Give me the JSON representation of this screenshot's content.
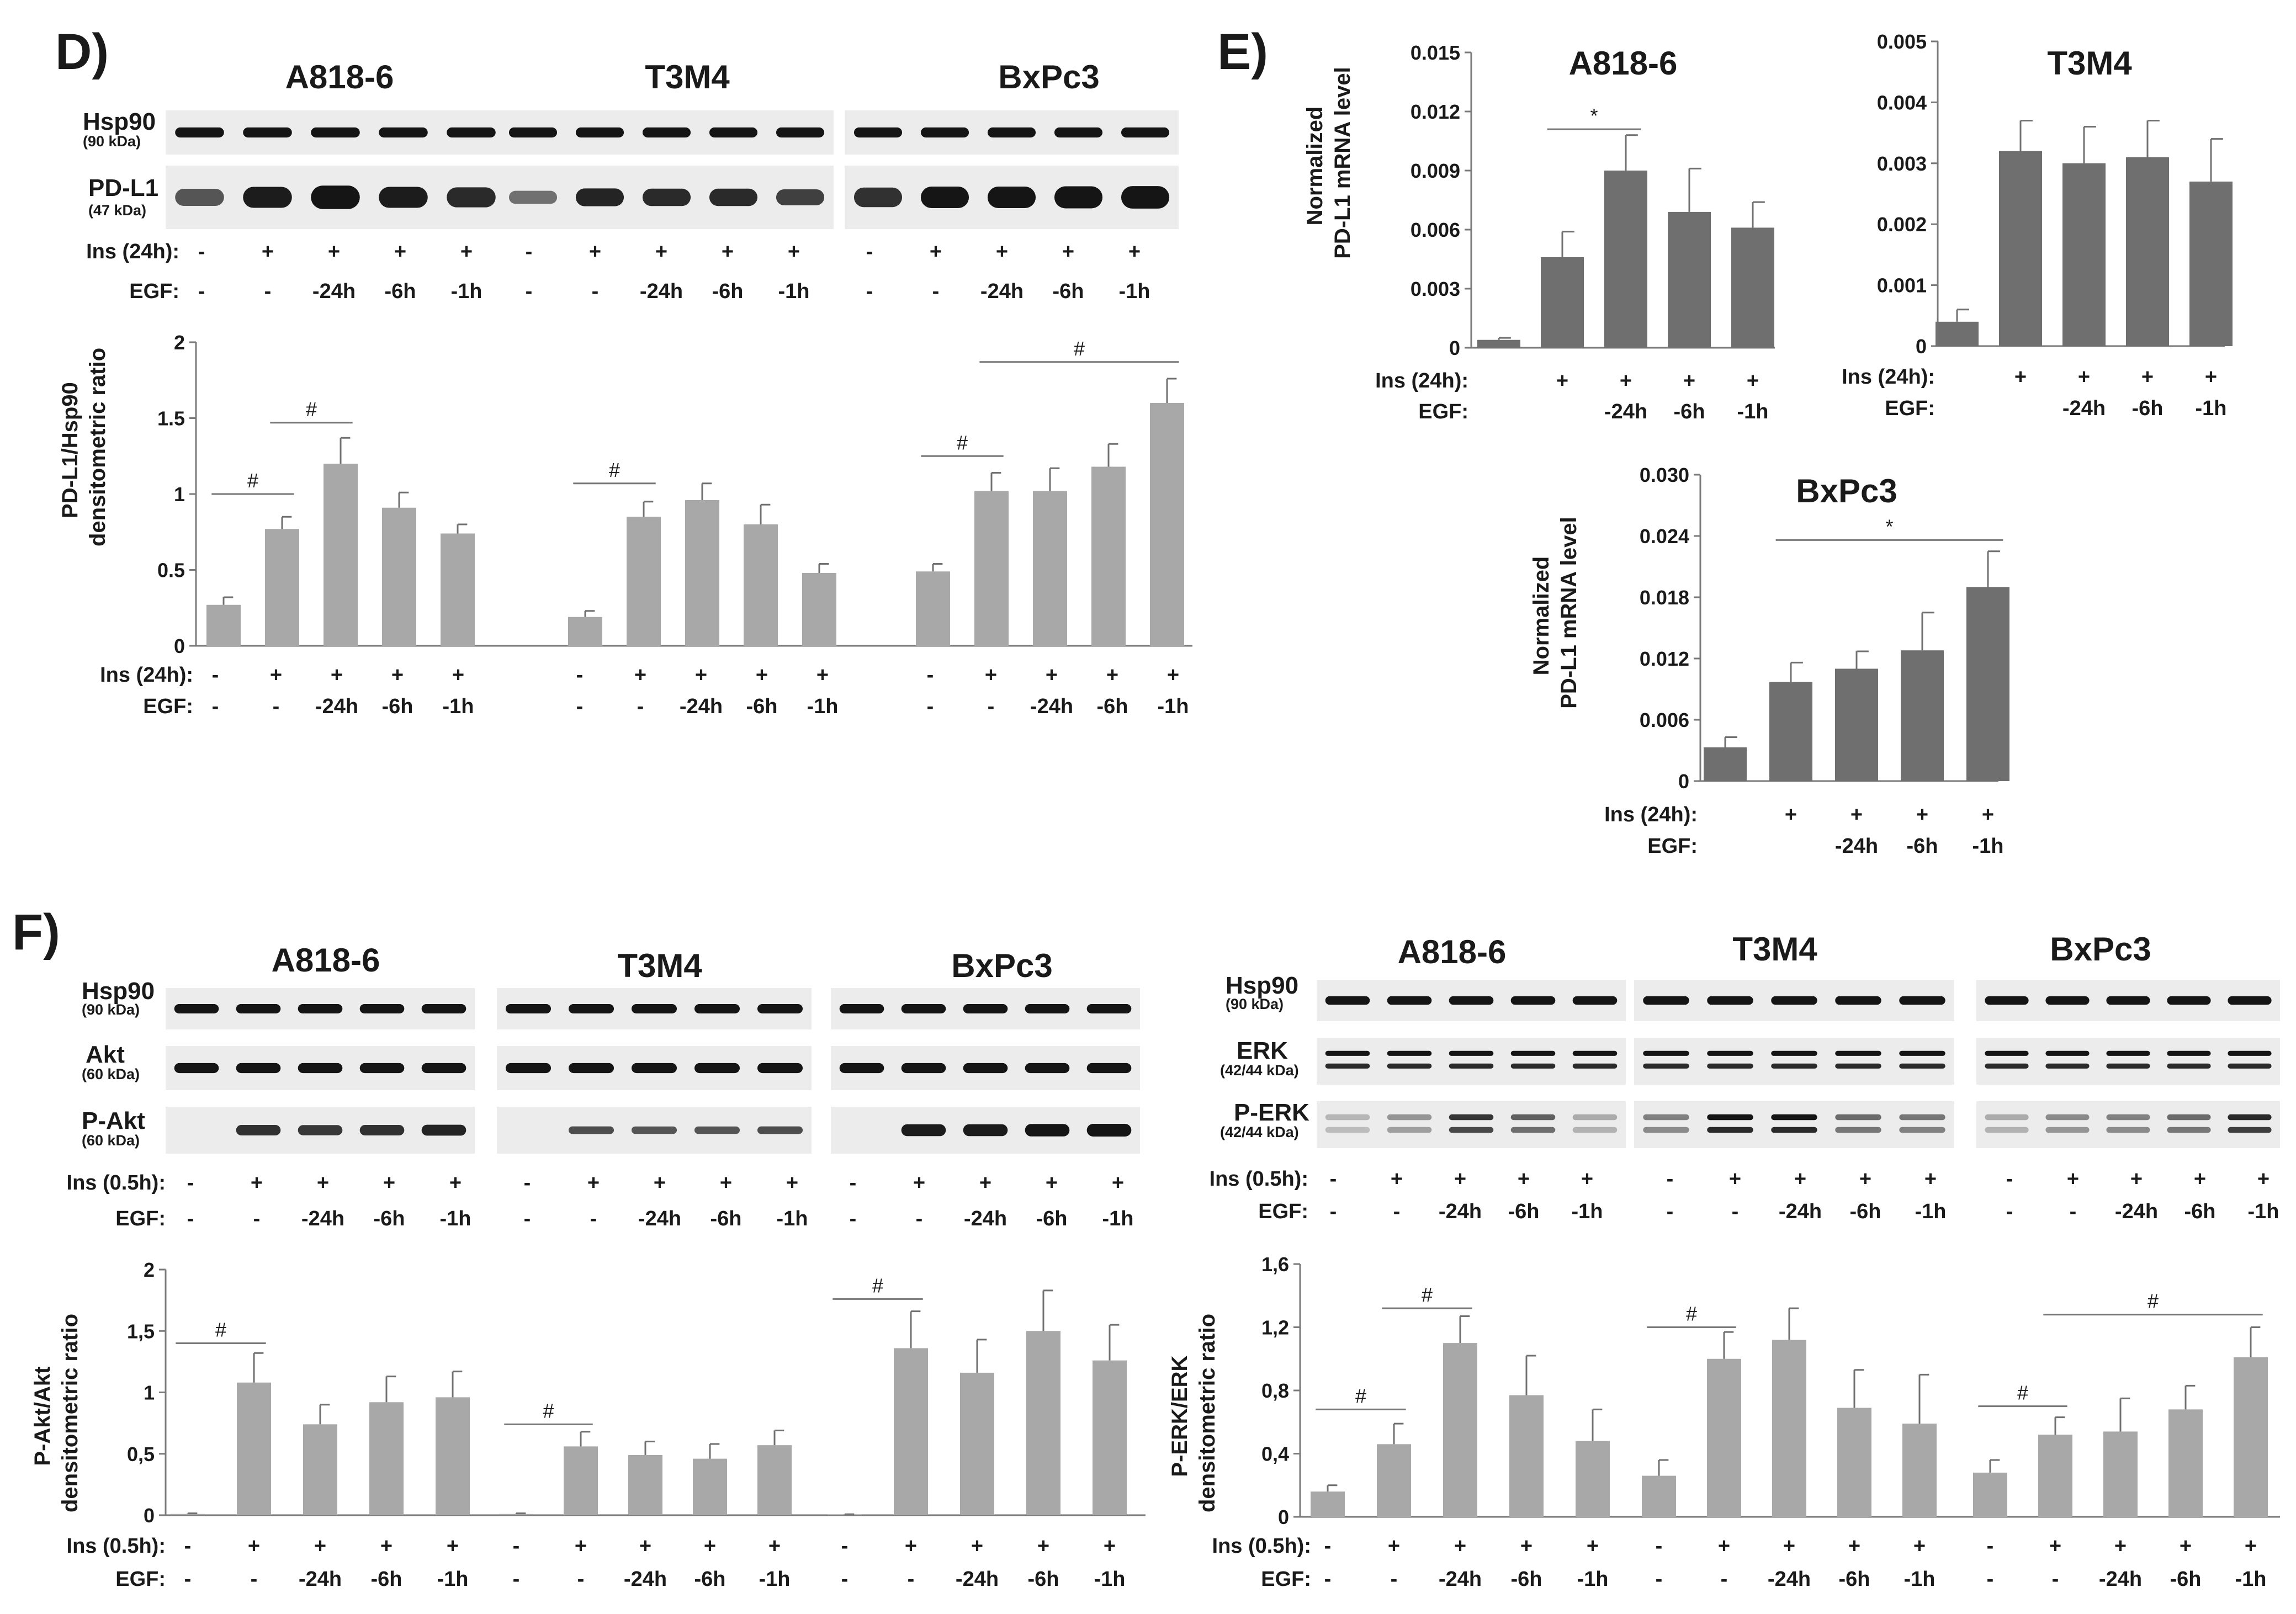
{
  "figure": {
    "panels": [
      "D)",
      "E)",
      "F)"
    ],
    "cell_lines": [
      "A818-6",
      "T3M4",
      "BxPc3"
    ]
  },
  "colors": {
    "bar_light": "#a9a8a8",
    "bar_dark": "#6f6f6f",
    "error": "#707070",
    "axis": "#7a7a7a",
    "sig_line": "#777777",
    "blot_bg": "#ececec",
    "band": "#151515"
  },
  "blot_labels": {
    "hsp90": {
      "name": "Hsp90",
      "kda": "(90 kDa)"
    },
    "pdl1": {
      "name": "PD-L1",
      "kda": "(47 kDa)"
    },
    "akt": {
      "name": "Akt",
      "kda": "(60 kDa)"
    },
    "pakt": {
      "name": "P-Akt",
      "kda": "(60 kDa)"
    },
    "erk": {
      "name": "ERK",
      "kda": "(42/44 kDa)"
    },
    "perk": {
      "name": "P-ERK",
      "kda": "(42/44 kDa)"
    }
  },
  "conditions": {
    "ins24": "Ins (24h):",
    "ins05": "Ins (0.5h):",
    "egf": "EGF:",
    "ins_marks": [
      "-",
      "+",
      "+",
      "+",
      "+"
    ],
    "egf_marks": [
      "-",
      "-",
      "-24h",
      "-6h",
      "-1h"
    ],
    "mrna_ins_marks": [
      "",
      "+",
      "+",
      "+",
      "+"
    ],
    "mrna_egf_marks": [
      "",
      "",
      "-24h",
      "-6h",
      "-1h"
    ]
  },
  "chart_data": [
    {
      "id": "D",
      "type": "bar",
      "ylabel": [
        "PD-L1/Hsp90",
        "densitometric ratio"
      ],
      "ylim": [
        0,
        2
      ],
      "ticks": [
        "0",
        "0.5",
        "1",
        "1.5",
        "2"
      ],
      "groups": [
        "A818-6",
        "T3M4",
        "BxPc3"
      ],
      "series": [
        {
          "name": "A818-6",
          "values": [
            0.27,
            0.77,
            1.2,
            0.91,
            0.74
          ],
          "errors": [
            0.05,
            0.08,
            0.17,
            0.1,
            0.06
          ]
        },
        {
          "name": "T3M4",
          "values": [
            0.19,
            0.85,
            0.96,
            0.8,
            0.48
          ],
          "errors": [
            0.04,
            0.1,
            0.11,
            0.13,
            0.06
          ]
        },
        {
          "name": "BxPc3",
          "values": [
            0.49,
            1.02,
            1.02,
            1.18,
            1.6
          ],
          "errors": [
            0.05,
            0.12,
            0.15,
            0.15,
            0.16
          ]
        }
      ],
      "significance": [
        {
          "group": 0,
          "from": 0,
          "to": 1,
          "y": 1.0,
          "label": "#"
        },
        {
          "group": 0,
          "from": 1,
          "to": 2,
          "y": 1.47,
          "label": "#"
        },
        {
          "group": 1,
          "from": 0,
          "to": 1,
          "y": 1.07,
          "label": "#"
        },
        {
          "group": 2,
          "from": 0,
          "to": 1,
          "y": 1.25,
          "label": "#"
        },
        {
          "group": 2,
          "from": 1,
          "to": 4,
          "y": 1.87,
          "label": "#"
        }
      ]
    },
    {
      "id": "E-A818-6",
      "type": "bar",
      "title": "A818-6",
      "ylabel": [
        "Normalized",
        "PD-L1 mRNA level"
      ],
      "ylim": [
        0,
        0.015
      ],
      "ticks": [
        "0",
        "0.003",
        "0.006",
        "0.009",
        "0.012",
        "0.015"
      ],
      "values": [
        0.0004,
        0.0046,
        0.009,
        0.0069,
        0.0061
      ],
      "errors": [
        0.0001,
        0.0013,
        0.0018,
        0.0022,
        0.0013
      ],
      "significance": [
        {
          "from": 1,
          "to": 2,
          "y": 0.0111,
          "label": "*"
        }
      ]
    },
    {
      "id": "E-T3M4",
      "type": "bar",
      "title": "T3M4",
      "ylim": [
        0,
        0.005
      ],
      "ticks": [
        "0",
        "0.001",
        "0.002",
        "0.003",
        "0.004",
        "0.005"
      ],
      "values": [
        0.0004,
        0.0032,
        0.003,
        0.0031,
        0.0027
      ],
      "errors": [
        0.0002,
        0.0005,
        0.0006,
        0.0006,
        0.0007
      ],
      "significance": []
    },
    {
      "id": "E-BxPc3",
      "type": "bar",
      "title": "BxPc3",
      "ylabel": [
        "Normalized",
        "PD-L1 mRNA level"
      ],
      "ylim": [
        0,
        0.03
      ],
      "ticks": [
        "0",
        "0.006",
        "0.012",
        "0.018",
        "0.024",
        "0.030"
      ],
      "values": [
        0.0033,
        0.0097,
        0.011,
        0.0128,
        0.019
      ],
      "errors": [
        0.001,
        0.0019,
        0.0017,
        0.0037,
        0.0035
      ],
      "significance": [
        {
          "from": 1,
          "to": 4,
          "y": 0.0236,
          "label": "*"
        }
      ]
    },
    {
      "id": "F-Akt",
      "type": "bar",
      "ylabel": [
        "P-Akt/Akt",
        "densitometric ratio"
      ],
      "ylim": [
        0,
        2
      ],
      "ticks": [
        "0",
        "0,5",
        "1",
        "1,5",
        "2"
      ],
      "groups": [
        "A818-6",
        "T3M4",
        "BxPc3"
      ],
      "series": [
        {
          "name": "A818-6",
          "values": [
            0.01,
            1.08,
            0.74,
            0.92,
            0.96
          ],
          "errors": [
            0.005,
            0.24,
            0.16,
            0.21,
            0.21
          ]
        },
        {
          "name": "T3M4",
          "values": [
            0.01,
            0.56,
            0.49,
            0.46,
            0.57
          ],
          "errors": [
            0.005,
            0.12,
            0.11,
            0.12,
            0.12
          ]
        },
        {
          "name": "BxPc3",
          "values": [
            0.005,
            1.36,
            1.16,
            1.5,
            1.26
          ],
          "errors": [
            0.003,
            0.3,
            0.27,
            0.33,
            0.29
          ]
        }
      ],
      "significance": [
        {
          "group": 0,
          "from": 0,
          "to": 1,
          "y": 1.4,
          "label": "#"
        },
        {
          "group": 1,
          "from": 0,
          "to": 1,
          "y": 0.74,
          "label": "#"
        },
        {
          "group": 2,
          "from": 0,
          "to": 1,
          "y": 1.76,
          "label": "#"
        }
      ]
    },
    {
      "id": "F-ERK",
      "type": "bar",
      "ylabel": [
        "P-ERK/ERK",
        "densitometric ratio"
      ],
      "ylim": [
        0,
        1.6
      ],
      "ticks": [
        "0",
        "0,4",
        "0,8",
        "1,2",
        "1,6"
      ],
      "groups": [
        "A818-6",
        "T3M4",
        "BxPc3"
      ],
      "series": [
        {
          "name": "A818-6",
          "values": [
            0.16,
            0.46,
            1.1,
            0.77,
            0.48
          ],
          "errors": [
            0.04,
            0.13,
            0.17,
            0.25,
            0.2
          ]
        },
        {
          "name": "T3M4",
          "values": [
            0.26,
            1.0,
            1.12,
            0.69,
            0.59
          ],
          "errors": [
            0.1,
            0.17,
            0.2,
            0.24,
            0.31
          ]
        },
        {
          "name": "BxPc3",
          "values": [
            0.28,
            0.52,
            0.54,
            0.68,
            1.01
          ],
          "errors": [
            0.08,
            0.11,
            0.21,
            0.15,
            0.19
          ]
        }
      ],
      "significance": [
        {
          "group": 0,
          "from": 0,
          "to": 1,
          "y": 0.68,
          "label": "#"
        },
        {
          "group": 0,
          "from": 1,
          "to": 2,
          "y": 1.32,
          "label": "#"
        },
        {
          "group": 1,
          "from": 0,
          "to": 1,
          "y": 1.2,
          "label": "#"
        },
        {
          "group": 2,
          "from": 0,
          "to": 1,
          "y": 0.7,
          "label": "#"
        },
        {
          "group": 2,
          "from": 1,
          "to": 4,
          "y": 1.28,
          "label": "#"
        }
      ]
    }
  ]
}
